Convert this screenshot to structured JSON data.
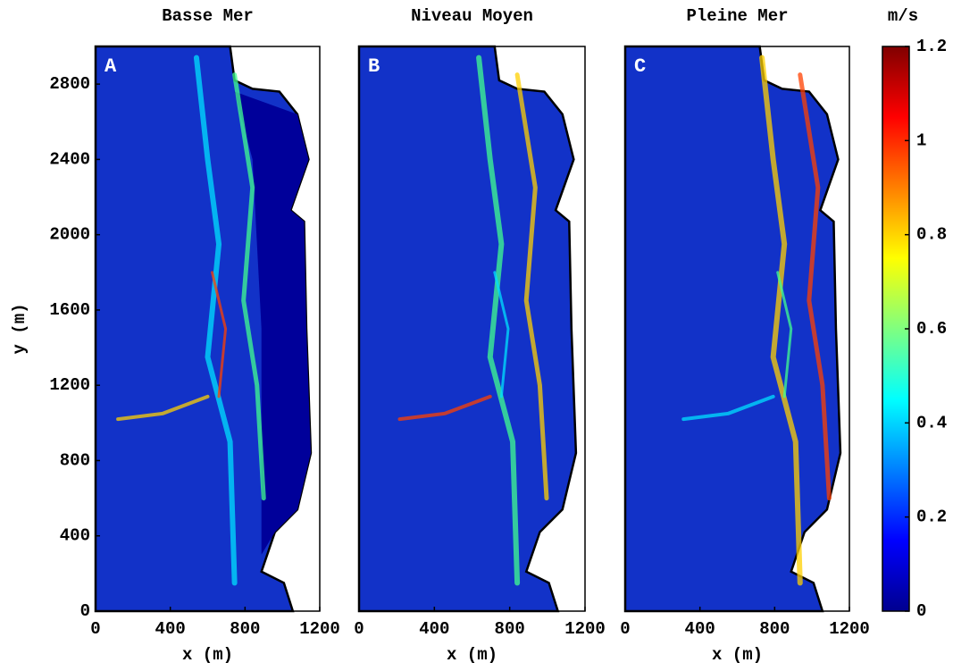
{
  "chart_data": [
    {
      "type": "heatmap",
      "title": "Basse Mer",
      "panel_label": "A",
      "xlabel": "x (m)",
      "ylabel": "y (m)",
      "xlim": [
        0,
        1200
      ],
      "ylim": [
        0,
        3000
      ],
      "xticks": [
        0,
        400,
        800,
        1200
      ],
      "yticks": [
        0,
        400,
        800,
        1200,
        1600,
        2000,
        2400,
        2800
      ]
    },
    {
      "type": "heatmap",
      "title": "Niveau Moyen",
      "panel_label": "B",
      "xlabel": "x (m)",
      "xlim": [
        0,
        1200
      ],
      "ylim": [
        0,
        3000
      ],
      "xticks": [
        0,
        400,
        800,
        1200
      ]
    },
    {
      "type": "heatmap",
      "title": "Pleine Mer",
      "panel_label": "C",
      "xlabel": "x (m)",
      "xlim": [
        0,
        1200
      ],
      "ylim": [
        0,
        3000
      ],
      "xticks": [
        0,
        400,
        800,
        1200
      ]
    },
    {
      "type": "colorbar",
      "label": "m/s",
      "colormap": "jet",
      "clim": [
        0,
        1.2
      ],
      "ticks": [
        0,
        0.2,
        0.4,
        0.6,
        0.8,
        1,
        1.2
      ]
    }
  ]
}
